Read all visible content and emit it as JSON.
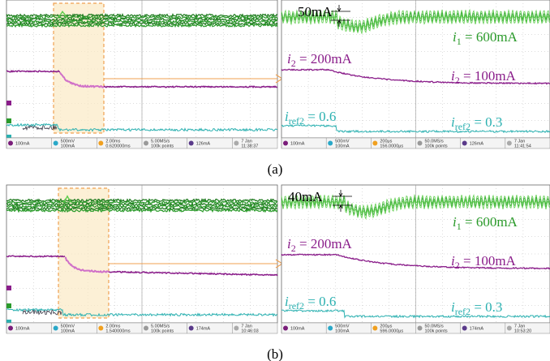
{
  "panels": [
    {
      "label": "(a)",
      "delta": "50mA",
      "i1": {
        "var": "i",
        "sub": "1",
        "rest": " = 600mA"
      },
      "i2_before": {
        "var": "i",
        "sub": "2",
        "rest": " = 200mA"
      },
      "i2_after": {
        "var": "i",
        "sub": "2",
        "rest": " = 100mA"
      },
      "iref_before": {
        "var": "i",
        "sub": "ref2",
        "rest": " = 0.6"
      },
      "iref_after": {
        "var": "i",
        "sub": "ref2",
        "rest": " = 0.3"
      },
      "left_status": [
        [
          "100mA"
        ],
        [
          "500mV",
          "100mA"
        ],
        [
          "2.00ms",
          "0.620000ms"
        ],
        [
          "5.00MS/s",
          "100k points"
        ],
        [
          "126mA"
        ],
        [
          "7 Jan",
          "11:38:37"
        ]
      ],
      "right_status": [
        [
          "100mA"
        ],
        [
          "500mV",
          "100mA"
        ],
        [
          "200μs",
          "156.0000μs"
        ],
        [
          "50.0MS/s",
          "100k points"
        ],
        [
          "126mA"
        ],
        [
          "7 Jan",
          "11:41:54"
        ]
      ]
    },
    {
      "label": "(b)",
      "delta": "40mA",
      "i1": {
        "var": "i",
        "sub": "1",
        "rest": " = 600mA"
      },
      "i2_before": {
        "var": "i",
        "sub": "2",
        "rest": " = 200mA"
      },
      "i2_after": {
        "var": "i",
        "sub": "2",
        "rest": " = 100mA"
      },
      "iref_before": {
        "var": "i",
        "sub": "ref2",
        "rest": " = 0.6"
      },
      "iref_after": {
        "var": "i",
        "sub": "ref2",
        "rest": " = 0.3"
      },
      "left_status": [
        [
          "100mA"
        ],
        [
          "500mV",
          "100mA"
        ],
        [
          "2.00ms",
          "1.540000ms"
        ],
        [
          "5.00MS/s",
          "100k points"
        ],
        [
          "174mA"
        ],
        [
          "7 Jan",
          "10:46:03"
        ]
      ],
      "right_status": [
        [
          "100mA"
        ],
        [
          "500mV",
          "100mA"
        ],
        [
          "200μs",
          "596.0000μs"
        ],
        [
          "50.0MS/s",
          "100k points"
        ],
        [
          "174mA"
        ],
        [
          "7 Jan",
          "10:53:20"
        ]
      ]
    }
  ]
}
